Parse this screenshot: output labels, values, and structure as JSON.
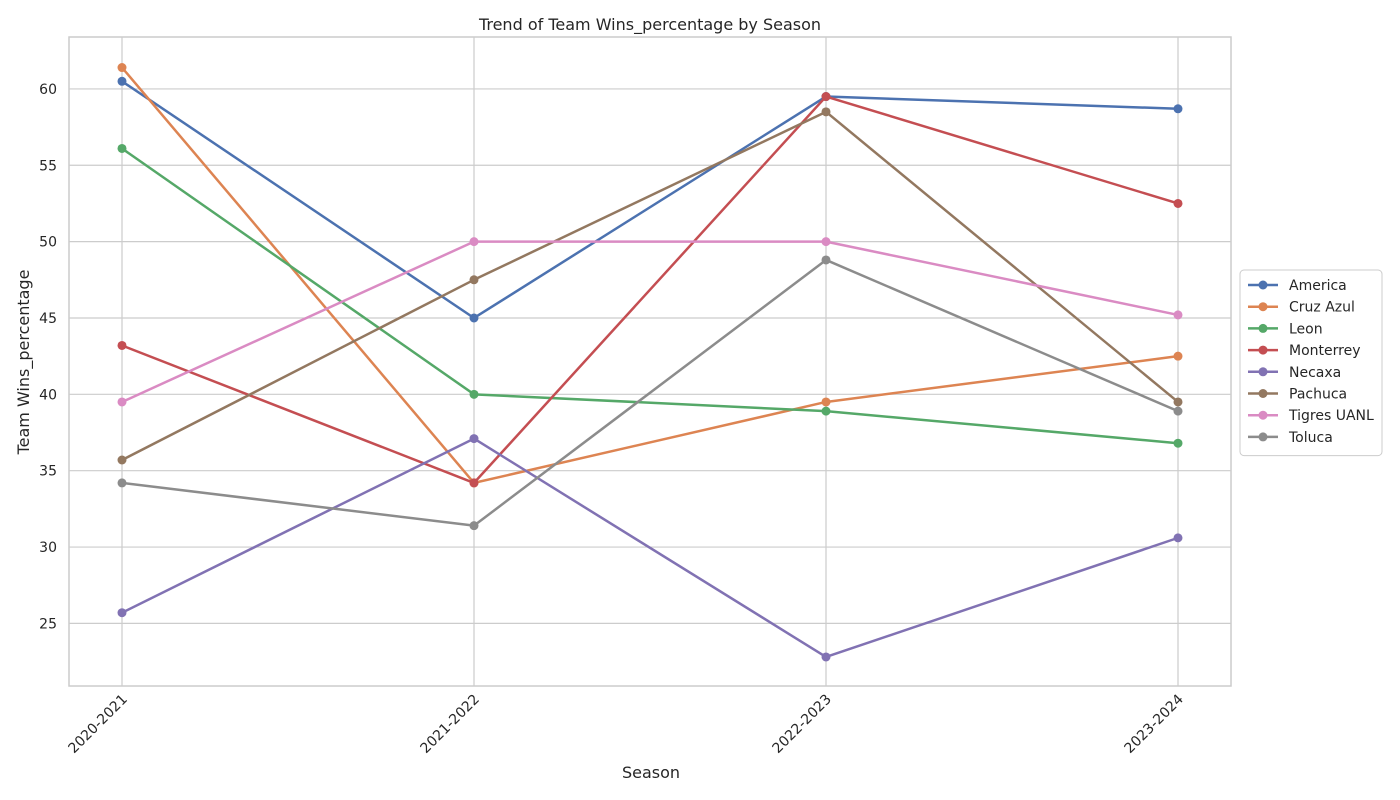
{
  "chart_data": {
    "type": "line",
    "title": "Trend of Team Wins_percentage by Season",
    "xlabel": "Season",
    "ylabel": "Team Wins_percentage",
    "categories": [
      "2020-2021",
      "2021-2022",
      "2022-2023",
      "2023-2024"
    ],
    "ylim": [
      20.9,
      63.4
    ],
    "yticks": [
      25,
      30,
      35,
      40,
      45,
      50,
      55,
      60
    ],
    "grid": true,
    "legend_position": "right",
    "series": [
      {
        "name": "America",
        "color": "#4c72b0",
        "values": [
          60.5,
          45.0,
          59.5,
          58.7
        ]
      },
      {
        "name": "Cruz Azul",
        "color": "#dd8452",
        "values": [
          61.4,
          34.2,
          39.5,
          42.5
        ]
      },
      {
        "name": "Leon",
        "color": "#55a868",
        "values": [
          56.1,
          40.0,
          38.9,
          36.8
        ]
      },
      {
        "name": "Monterrey",
        "color": "#c44e52",
        "values": [
          43.2,
          34.2,
          59.5,
          52.5
        ]
      },
      {
        "name": "Necaxa",
        "color": "#8172b3",
        "values": [
          25.7,
          37.1,
          22.8,
          30.6
        ]
      },
      {
        "name": "Pachuca",
        "color": "#937860",
        "values": [
          35.7,
          47.5,
          58.5,
          39.5
        ]
      },
      {
        "name": "Tigres UANL",
        "color": "#da8bc3",
        "values": [
          39.5,
          50.0,
          50.0,
          45.2
        ]
      },
      {
        "name": "Toluca",
        "color": "#8c8c8c",
        "values": [
          34.2,
          31.4,
          48.8,
          38.9
        ]
      }
    ]
  }
}
